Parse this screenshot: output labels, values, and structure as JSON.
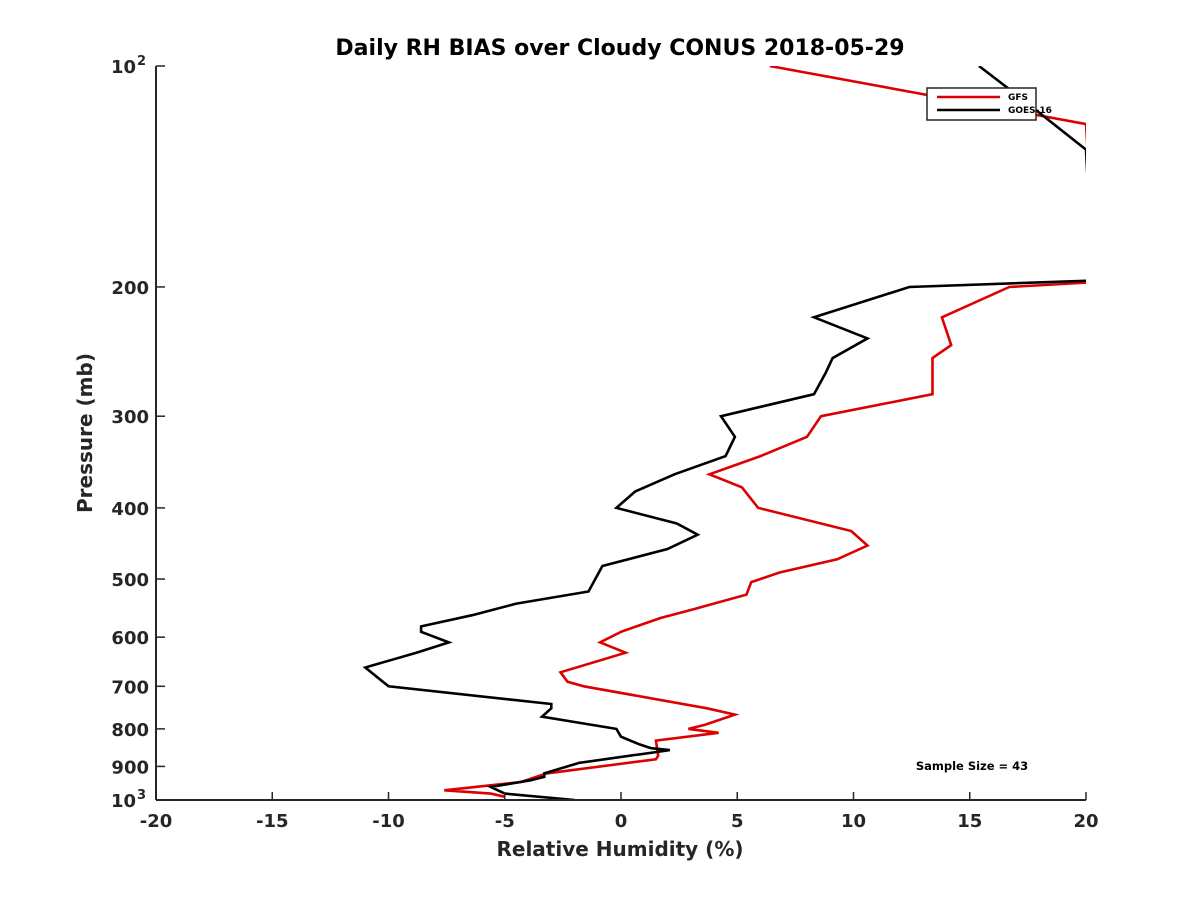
{
  "chart_data": {
    "type": "line",
    "title": "Daily RH BIAS over Cloudy CONUS 2018-05-29",
    "xlabel": "Relative Humidity (%)",
    "ylabel": "Pressure (mb)",
    "xlim": [
      -20,
      20
    ],
    "ylim": [
      100,
      1000
    ],
    "yscale": "log",
    "y_reversed": true,
    "grid": false,
    "legend_position": "top-right",
    "x_ticks": [
      -20,
      -15,
      -10,
      -5,
      0,
      5,
      10,
      15,
      20
    ],
    "x_tick_labels": [
      "-20",
      "-15",
      "-10",
      "-5",
      "0",
      "5",
      "10",
      "15",
      "20"
    ],
    "y_ticks": [
      100,
      200,
      300,
      400,
      500,
      600,
      700,
      800,
      900,
      1000
    ],
    "y_tick_labels": [
      {
        "base": "10",
        "exp": "2"
      },
      {
        "base": "200",
        "exp": ""
      },
      {
        "base": "300",
        "exp": ""
      },
      {
        "base": "400",
        "exp": ""
      },
      {
        "base": "500",
        "exp": ""
      },
      {
        "base": "600",
        "exp": ""
      },
      {
        "base": "700",
        "exp": ""
      },
      {
        "base": "800",
        "exp": ""
      },
      {
        "base": "900",
        "exp": ""
      },
      {
        "base": "10",
        "exp": "3"
      }
    ],
    "annotation": "Sample Size = 43",
    "series": [
      {
        "name": "GFS",
        "color": "#dd0000",
        "points": [
          [
            6.4,
            100
          ],
          [
            20,
            120
          ],
          [
            20.4,
            197
          ],
          [
            16.7,
            200
          ],
          [
            13.8,
            220
          ],
          [
            14.2,
            240
          ],
          [
            13.4,
            250
          ],
          [
            13.4,
            280
          ],
          [
            8.6,
            300
          ],
          [
            8.0,
            320
          ],
          [
            6.0,
            340
          ],
          [
            3.8,
            360
          ],
          [
            5.2,
            375
          ],
          [
            5.9,
            400
          ],
          [
            9.9,
            430
          ],
          [
            10.6,
            450
          ],
          [
            9.3,
            470
          ],
          [
            6.8,
            490
          ],
          [
            5.6,
            505
          ],
          [
            5.4,
            525
          ],
          [
            3.1,
            550
          ],
          [
            1.7,
            565
          ],
          [
            0,
            590
          ],
          [
            -0.9,
            610
          ],
          [
            0.2,
            630
          ],
          [
            -2.6,
            670
          ],
          [
            -2.3,
            690
          ],
          [
            -1.6,
            700
          ],
          [
            3.7,
            750
          ],
          [
            4.9,
            765
          ],
          [
            3.6,
            790
          ],
          [
            2.9,
            800
          ],
          [
            4.2,
            810
          ],
          [
            1.5,
            830
          ],
          [
            1.6,
            870
          ],
          [
            1.5,
            880
          ],
          [
            -3.2,
            920
          ],
          [
            -4.3,
            945
          ],
          [
            -7.6,
            970
          ],
          [
            -5.6,
            980
          ],
          [
            -5.0,
            990
          ]
        ]
      },
      {
        "name": "GOES-16",
        "color": "#000000",
        "points": [
          [
            15.4,
            100
          ],
          [
            17.1,
            110
          ],
          [
            20,
            130
          ],
          [
            20.3,
            196
          ],
          [
            12.4,
            200
          ],
          [
            8.3,
            220
          ],
          [
            10.6,
            235
          ],
          [
            9.1,
            250
          ],
          [
            8.8,
            262
          ],
          [
            8.3,
            280
          ],
          [
            4.3,
            300
          ],
          [
            4.9,
            320
          ],
          [
            4.5,
            340
          ],
          [
            2.3,
            360
          ],
          [
            0.6,
            380
          ],
          [
            -0.2,
            400
          ],
          [
            2.4,
            420
          ],
          [
            3.3,
            435
          ],
          [
            2.0,
            455
          ],
          [
            -0.8,
            480
          ],
          [
            -1.4,
            520
          ],
          [
            -4.5,
            540
          ],
          [
            -6.4,
            560
          ],
          [
            -8.6,
            580
          ],
          [
            -8.6,
            590
          ],
          [
            -7.4,
            610
          ],
          [
            -8.8,
            630
          ],
          [
            -11.0,
            660
          ],
          [
            -10.0,
            700
          ],
          [
            -4.7,
            730
          ],
          [
            -3.0,
            740
          ],
          [
            -3.0,
            750
          ],
          [
            -3.4,
            770
          ],
          [
            -0.2,
            800
          ],
          [
            0,
            820
          ],
          [
            0.8,
            840
          ],
          [
            1.3,
            850
          ],
          [
            2.1,
            855
          ],
          [
            -1.8,
            890
          ],
          [
            -3.3,
            920
          ],
          [
            -3.3,
            930
          ],
          [
            -3.9,
            940
          ],
          [
            -5.6,
            960
          ],
          [
            -5.0,
            980
          ],
          [
            -2.0,
            1000
          ]
        ]
      }
    ]
  }
}
